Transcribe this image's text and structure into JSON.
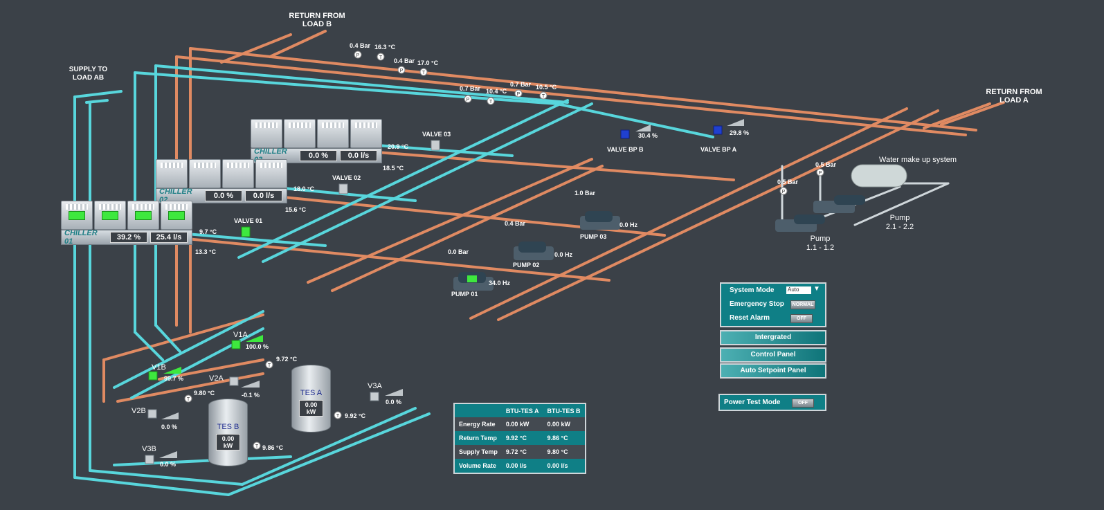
{
  "headers": {
    "return_load_b_1": "RETURN FROM",
    "return_load_b_2": "LOAD B",
    "supply_ab_1": "SUPPLY TO",
    "supply_ab_2": "LOAD AB",
    "return_load_a_1": "RETURN FROM",
    "return_load_a_2": "LOAD A"
  },
  "chillers": [
    {
      "name": "CHILLER 03",
      "load": "0.0 %",
      "flow": "0.0 l/s",
      "supply_temp": "20.9 °C",
      "return_temp": "18.5 °C"
    },
    {
      "name": "CHILLER 02",
      "load": "0.0 %",
      "flow": "0.0 l/s",
      "supply_temp": "18.0 °C",
      "return_temp": "15.6 °C"
    },
    {
      "name": "CHILLER 01",
      "load": "39.2 %",
      "flow": "25.4 l/s",
      "supply_temp": "9.7 °C",
      "return_temp": "13.3 °C"
    }
  ],
  "valves": {
    "v01": "VALVE 01",
    "v02": "VALVE 02",
    "v03": "VALVE 03",
    "bp_b": "VALVE BP B",
    "bp_b_pct": "30.4 %",
    "bp_a": "VALVE BP A",
    "bp_a_pct": "29.8 %"
  },
  "sensors": {
    "p1": "0.4 Bar",
    "t1": "16.3 °C",
    "p2": "0.4 Bar",
    "t2": "17.0 °C",
    "p3": "0.7 Bar",
    "t3": "10.4 °C",
    "p4": "0.7 Bar",
    "t4": "10.5 °C"
  },
  "pumps": [
    {
      "name": "PUMP 01",
      "pressure": "0.0 Bar",
      "freq": "34.0 Hz"
    },
    {
      "name": "PUMP 02",
      "pressure": "0.4 Bar",
      "freq": "0.0 Hz"
    },
    {
      "name": "PUMP 03",
      "pressure": "1.0 Bar",
      "freq": "0.0 Hz"
    }
  ],
  "makeup": {
    "title": "Water make up system",
    "p1": "0.5 Bar",
    "p2": "0.5 Bar",
    "pump_a_1": "Pump",
    "pump_a_2": "1.1 - 1.2",
    "pump_b_1": "Pump",
    "pump_b_2": "2.1 - 2.2"
  },
  "tes": {
    "v1a": "V1A",
    "v1a_pct": "100.0 %",
    "v1b": "V1B",
    "v1b_pct": "99.7 %",
    "v2a": "V2A",
    "v2a_pct": "-0.1 %",
    "v2b": "V2B",
    "v2b_pct": "0.0 %",
    "v3a": "V3A",
    "v3a_pct": "0.0 %",
    "v3b": "V3B",
    "v3b_pct": "0.0 %",
    "t_a_top": "9.72 °C",
    "t_b_top": "9.80 °C",
    "t_a_bot": "9.92 °C",
    "t_b_bot": "9.86 °C",
    "tank_a": "TES A",
    "tank_a_kw": "0.00 kW",
    "tank_b": "TES B",
    "tank_b_kw": "0.00 kW"
  },
  "btu": {
    "col_a": "BTU-TES A",
    "col_b": "BTU-TES B",
    "rows": [
      {
        "label": "Energy Rate",
        "a": "0.00 kW",
        "b": "0.00 kW"
      },
      {
        "label": "Return Temp",
        "a": "9.92 °C",
        "b": "9.86 °C"
      },
      {
        "label": "Supply Temp",
        "a": "9.72 °C",
        "b": "9.80 °C"
      },
      {
        "label": "Volume Rate",
        "a": "0.00 l/s",
        "b": "0.00 l/s"
      }
    ]
  },
  "controls": {
    "system_mode_label": "System Mode",
    "system_mode_value": "Auto",
    "emergency_label": "Emergency Stop",
    "emergency_value": "NORMAL",
    "reset_label": "Reset Alarm",
    "reset_value": "OFF",
    "btn_integrated": "Intergrated",
    "btn_control": "Control Panel",
    "btn_setpoint": "Auto Setpoint Panel",
    "power_test_label": "Power Test Mode",
    "power_test_value": "OFF"
  },
  "colors": {
    "supply": "#58d6dc",
    "return": "#e08a62",
    "panel": "#0f7f86",
    "background": "#3b4148"
  }
}
